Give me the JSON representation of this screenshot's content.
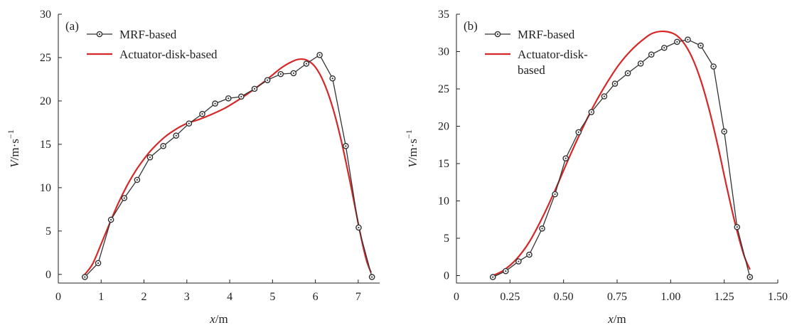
{
  "chart_data": [
    {
      "type": "line",
      "panel_label": "(a)",
      "xlabel": {
        "var": "x",
        "unit": "/m"
      },
      "ylabel": {
        "var": "V",
        "unit": "/m·s",
        "sup": "−1"
      },
      "xlim": [
        0,
        7.5
      ],
      "ylim": [
        -1,
        30
      ],
      "xticks": [
        0,
        1,
        2,
        3,
        4,
        5,
        6,
        7
      ],
      "xtick_labels": [
        "0",
        "1",
        "2",
        "3",
        "4",
        "5",
        "6",
        "7"
      ],
      "yticks": [
        0,
        5,
        10,
        15,
        20,
        25,
        30
      ],
      "ytick_labels": [
        "0",
        "5",
        "10",
        "15",
        "20",
        "25",
        "30"
      ],
      "grid": false,
      "legend_position": "top-left",
      "series": [
        {
          "name": "MRF-based",
          "color": "#333333",
          "marker": "circle",
          "x": [
            0.62,
            0.93,
            1.23,
            1.54,
            1.84,
            2.14,
            2.45,
            2.75,
            3.05,
            3.36,
            3.66,
            3.97,
            4.27,
            4.58,
            4.88,
            5.19,
            5.49,
            5.79,
            6.1,
            6.4,
            6.71,
            7.01,
            7.32
          ],
          "y": [
            -0.3,
            1.3,
            6.3,
            8.8,
            10.9,
            13.5,
            14.8,
            16.0,
            17.4,
            18.5,
            19.7,
            20.3,
            20.5,
            21.4,
            22.4,
            23.1,
            23.2,
            24.3,
            25.3,
            22.6,
            14.8,
            5.4,
            -0.3
          ]
        },
        {
          "name": "Actuator-disk-based",
          "color": "#d62728",
          "marker": "none",
          "x": [
            0.62,
            0.8,
            1.0,
            1.2,
            1.4,
            1.6,
            1.8,
            2.0,
            2.2,
            2.5,
            2.8,
            3.0,
            3.3,
            3.6,
            3.9,
            4.2,
            4.5,
            4.8,
            5.0,
            5.2,
            5.4,
            5.6,
            5.8,
            6.0,
            6.2,
            6.4,
            6.6,
            6.8,
            6.9,
            7.0,
            7.1,
            7.2,
            7.3
          ],
          "y": [
            0.0,
            1.2,
            3.5,
            5.9,
            8.2,
            10.2,
            11.9,
            13.3,
            14.5,
            15.9,
            16.9,
            17.4,
            17.9,
            18.5,
            19.2,
            20.1,
            21.1,
            22.2,
            23.0,
            23.8,
            24.4,
            24.8,
            24.7,
            23.9,
            22.1,
            19.3,
            15.5,
            10.9,
            8.4,
            5.9,
            3.5,
            1.5,
            0.2
          ]
        }
      ]
    },
    {
      "type": "line",
      "panel_label": "(b)",
      "xlabel": {
        "var": "x",
        "unit": "/m"
      },
      "ylabel": {
        "var": "V",
        "unit": "/m·s",
        "sup": "−1"
      },
      "xlim": [
        0,
        1.5
      ],
      "ylim": [
        -1,
        35
      ],
      "xticks": [
        0,
        0.25,
        0.5,
        0.75,
        1.0,
        1.25,
        1.5
      ],
      "xtick_labels": [
        "0",
        "0.25",
        "0.50",
        "0.75",
        "1.00",
        "1.25",
        "1.50"
      ],
      "yticks": [
        0,
        5,
        10,
        15,
        20,
        25,
        30,
        35
      ],
      "ytick_labels": [
        "0",
        "5",
        "10",
        "15",
        "20",
        "25",
        "30",
        "35"
      ],
      "grid": false,
      "legend_position": "top-left",
      "series": [
        {
          "name": "MRF-based",
          "color": "#333333",
          "marker": "circle",
          "x": [
            0.17,
            0.23,
            0.29,
            0.34,
            0.4,
            0.46,
            0.51,
            0.57,
            0.63,
            0.69,
            0.74,
            0.8,
            0.86,
            0.91,
            0.97,
            1.03,
            1.08,
            1.14,
            1.2,
            1.25,
            1.31,
            1.37
          ],
          "y": [
            -0.2,
            0.6,
            1.9,
            2.8,
            6.3,
            10.9,
            15.7,
            19.2,
            21.9,
            24.0,
            25.7,
            27.1,
            28.4,
            29.6,
            30.5,
            31.3,
            31.6,
            30.8,
            28.0,
            19.3,
            6.5,
            -0.2
          ]
        },
        {
          "name": "Actuator-disk-based",
          "color": "#d62728",
          "marker": "none",
          "x": [
            0.17,
            0.22,
            0.28,
            0.34,
            0.4,
            0.46,
            0.52,
            0.58,
            0.64,
            0.7,
            0.76,
            0.82,
            0.88,
            0.92,
            0.97,
            1.02,
            1.06,
            1.1,
            1.14,
            1.18,
            1.22,
            1.26,
            1.3,
            1.34,
            1.37
          ],
          "y": [
            0.0,
            0.7,
            2.2,
            4.5,
            7.7,
            11.4,
            15.4,
            19.2,
            22.7,
            25.7,
            28.3,
            30.3,
            31.8,
            32.5,
            32.7,
            32.3,
            31.2,
            29.2,
            26.2,
            22.2,
            17.4,
            12.1,
            7.1,
            2.9,
            0.8
          ]
        }
      ]
    }
  ]
}
